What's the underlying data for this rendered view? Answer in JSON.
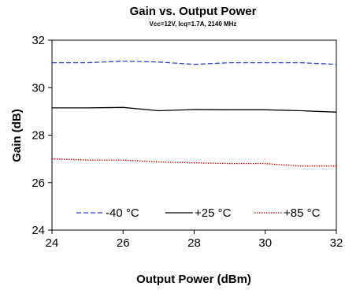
{
  "chart_data": {
    "type": "line",
    "title": "Gain vs. Output Power",
    "subtitle": "Vcc=12V, Icq=1.7A, 2140 MHz",
    "xlabel": "Output Power (dBm)",
    "ylabel": "Gain (dB)",
    "xlim": [
      24,
      32
    ],
    "ylim": [
      24,
      32
    ],
    "xticks": [
      "24",
      "26",
      "28",
      "30",
      "32"
    ],
    "yticks": [
      "24",
      "26",
      "28",
      "30",
      "32"
    ],
    "grid": false,
    "legend_position": "bottom-inside",
    "series": [
      {
        "name": "-40 °C",
        "color": "#2b3fd6",
        "dash": "dashed",
        "x": [
          24,
          25,
          26,
          27,
          28,
          29,
          30,
          31,
          32
        ],
        "y": [
          31.05,
          31.05,
          31.12,
          31.08,
          30.98,
          31.05,
          31.05,
          31.05,
          30.98
        ]
      },
      {
        "name": "+25 °C",
        "color": "#000000",
        "dash": "solid",
        "x": [
          24,
          25,
          26,
          27,
          28,
          29,
          30,
          31,
          32
        ],
        "y": [
          29.15,
          29.15,
          29.17,
          29.03,
          29.08,
          29.07,
          29.07,
          29.03,
          28.97
        ]
      },
      {
        "name": "+85 °C",
        "color": "#cc0000",
        "dash": "dotted",
        "x": [
          24,
          25,
          26,
          27,
          28,
          29,
          30,
          31,
          32
        ],
        "y": [
          27.0,
          26.95,
          26.95,
          26.87,
          26.83,
          26.8,
          26.8,
          26.7,
          26.7
        ]
      }
    ]
  }
}
